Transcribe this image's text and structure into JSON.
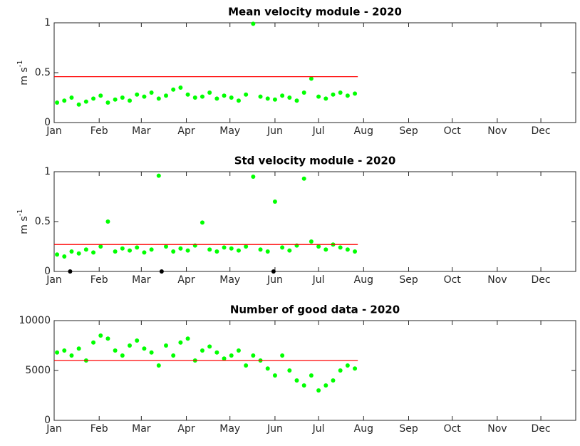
{
  "chart_data": [
    {
      "type": "scatter",
      "title": "Mean velocity module - 2020",
      "ylabel": "m s",
      "ylabel_sup": "-1",
      "xlim": [
        1,
        360
      ],
      "ylim": [
        0,
        1
      ],
      "yticks": [
        0,
        0.5,
        1
      ],
      "xticks": [
        {
          "value": 1,
          "label": "Jan"
        },
        {
          "value": 32,
          "label": "Feb"
        },
        {
          "value": 61,
          "label": "Mar"
        },
        {
          "value": 92,
          "label": "Apr"
        },
        {
          "value": 122,
          "label": "May"
        },
        {
          "value": 153,
          "label": "Jun"
        },
        {
          "value": 183,
          "label": "Jul"
        },
        {
          "value": 214,
          "label": "Aug"
        },
        {
          "value": 245,
          "label": "Sep"
        },
        {
          "value": 275,
          "label": "Oct"
        },
        {
          "value": 306,
          "label": "Nov"
        },
        {
          "value": 336,
          "label": "Dec"
        }
      ],
      "series": [
        {
          "color": "#00ff00",
          "x": [
            3,
            8,
            13,
            18,
            23,
            28,
            33,
            38,
            43,
            48,
            53,
            58,
            63,
            68,
            73,
            78,
            83,
            88,
            93,
            98,
            103,
            108,
            113,
            118,
            123,
            128,
            133,
            138,
            143,
            148,
            153,
            158,
            163,
            168,
            173,
            178,
            183,
            188,
            193,
            198,
            203,
            208
          ],
          "values": [
            0.2,
            0.22,
            0.25,
            0.18,
            0.21,
            0.24,
            0.27,
            0.2,
            0.23,
            0.25,
            0.22,
            0.28,
            0.26,
            0.3,
            0.24,
            0.27,
            0.33,
            0.35,
            0.28,
            0.25,
            0.26,
            0.3,
            0.24,
            0.27,
            0.25,
            0.22,
            0.28,
            0.99,
            0.26,
            0.24,
            0.23,
            0.27,
            0.25,
            0.22,
            0.3,
            0.44,
            0.26,
            0.24,
            0.28,
            0.3,
            0.27,
            0.29
          ]
        },
        {
          "style": "line",
          "color": "#ff0000",
          "x": [
            1,
            210
          ],
          "values": [
            0.46,
            0.46
          ]
        }
      ]
    },
    {
      "type": "scatter",
      "title": "Std velocity module - 2020",
      "ylabel": "m s",
      "ylabel_sup": "-1",
      "xlim": [
        1,
        360
      ],
      "ylim": [
        0,
        1
      ],
      "yticks": [
        0,
        0.5,
        1
      ],
      "xticks": [
        {
          "value": 1,
          "label": "Jan"
        },
        {
          "value": 32,
          "label": "Feb"
        },
        {
          "value": 61,
          "label": "Mar"
        },
        {
          "value": 92,
          "label": "Apr"
        },
        {
          "value": 122,
          "label": "May"
        },
        {
          "value": 153,
          "label": "Jun"
        },
        {
          "value": 183,
          "label": "Jul"
        },
        {
          "value": 214,
          "label": "Aug"
        },
        {
          "value": 245,
          "label": "Sep"
        },
        {
          "value": 275,
          "label": "Oct"
        },
        {
          "value": 306,
          "label": "Nov"
        },
        {
          "value": 336,
          "label": "Dec"
        }
      ],
      "series": [
        {
          "color": "#00ff00",
          "x": [
            3,
            8,
            13,
            18,
            23,
            28,
            33,
            38,
            43,
            48,
            53,
            58,
            63,
            68,
            73,
            78,
            83,
            88,
            93,
            98,
            103,
            108,
            113,
            118,
            123,
            128,
            133,
            138,
            143,
            148,
            153,
            158,
            163,
            168,
            173,
            178,
            183,
            188,
            193,
            198,
            203,
            208
          ],
          "values": [
            0.17,
            0.15,
            0.2,
            0.18,
            0.22,
            0.19,
            0.25,
            0.5,
            0.2,
            0.23,
            0.21,
            0.24,
            0.19,
            0.22,
            0.96,
            0.25,
            0.2,
            0.23,
            0.21,
            0.26,
            0.49,
            0.22,
            0.2,
            0.24,
            0.23,
            0.21,
            0.25,
            0.95,
            0.22,
            0.2,
            0.7,
            0.24,
            0.21,
            0.26,
            0.93,
            0.3,
            0.25,
            0.22,
            0.27,
            0.24,
            0.22,
            0.2
          ]
        },
        {
          "color": "#000000",
          "x": [
            12,
            75,
            152
          ],
          "values": [
            0,
            0,
            0
          ]
        },
        {
          "style": "line",
          "color": "#ff0000",
          "x": [
            1,
            210
          ],
          "values": [
            0.27,
            0.27
          ]
        }
      ]
    },
    {
      "type": "scatter",
      "title": "Number of good data - 2020",
      "xlim": [
        1,
        360
      ],
      "ylim": [
        0,
        10000
      ],
      "yticks": [
        0,
        5000,
        10000
      ],
      "xticks": [
        {
          "value": 1,
          "label": "Jan"
        },
        {
          "value": 32,
          "label": "Feb"
        },
        {
          "value": 61,
          "label": "Mar"
        },
        {
          "value": 92,
          "label": "Apr"
        },
        {
          "value": 122,
          "label": "May"
        },
        {
          "value": 153,
          "label": "Jun"
        },
        {
          "value": 183,
          "label": "Jul"
        },
        {
          "value": 214,
          "label": "Aug"
        },
        {
          "value": 245,
          "label": "Sep"
        },
        {
          "value": 275,
          "label": "Oct"
        },
        {
          "value": 306,
          "label": "Nov"
        },
        {
          "value": 336,
          "label": "Dec"
        }
      ],
      "series": [
        {
          "color": "#00ff00",
          "x": [
            3,
            8,
            13,
            18,
            23,
            28,
            33,
            38,
            43,
            48,
            53,
            58,
            63,
            68,
            73,
            78,
            83,
            88,
            93,
            98,
            103,
            108,
            113,
            118,
            123,
            128,
            133,
            138,
            143,
            148,
            153,
            158,
            163,
            168,
            173,
            178,
            183,
            188,
            193,
            198,
            203,
            208
          ],
          "values": [
            6800,
            7000,
            6500,
            7200,
            6000,
            7800,
            8500,
            8200,
            7000,
            6500,
            7500,
            8000,
            7200,
            6800,
            5500,
            7500,
            6500,
            7800,
            8200,
            6000,
            7000,
            7400,
            6800,
            6200,
            6500,
            7000,
            5500,
            6500,
            6000,
            5200,
            4500,
            6500,
            5000,
            4000,
            3500,
            4500,
            3000,
            3500,
            4000,
            5000,
            5500,
            5200
          ]
        },
        {
          "style": "line",
          "color": "#ff0000",
          "x": [
            1,
            210
          ],
          "values": [
            6000,
            6000
          ]
        }
      ]
    }
  ]
}
